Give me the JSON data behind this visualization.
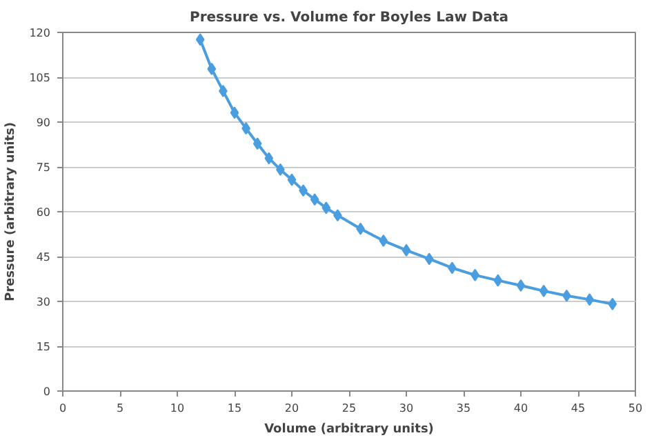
{
  "chart_data": {
    "type": "line",
    "title": "Pressure vs. Volume for Boyles Law Data",
    "xlabel": "Volume (arbitrary units)",
    "ylabel": "Pressure (arbitrary units)",
    "x": [
      12,
      13,
      14,
      15,
      16,
      17,
      18,
      19,
      20,
      21,
      22,
      23,
      24,
      26,
      28,
      30,
      32,
      34,
      36,
      38,
      40,
      42,
      44,
      46,
      48
    ],
    "series": [
      {
        "color": "#4a9ee0",
        "values": [
          117.6,
          107.8,
          100.4,
          93.1,
          87.9,
          82.8,
          77.9,
          74.1,
          70.7,
          67.1,
          64.1,
          61.3,
          58.8,
          54.3,
          50.3,
          47.1,
          44.2,
          41.2,
          38.8,
          37,
          35.3,
          33.5,
          31.9,
          30.6,
          29.1
        ]
      }
    ],
    "xlim": [
      0,
      50
    ],
    "xticks": [
      0,
      5,
      10,
      15,
      20,
      25,
      30,
      35,
      40,
      45,
      50
    ],
    "ylim": [
      0,
      120
    ],
    "yticks": [
      0,
      15,
      30,
      45,
      60,
      75,
      90,
      105,
      120
    ],
    "grid": "y",
    "marker": "diamond",
    "line_style": "solid"
  }
}
